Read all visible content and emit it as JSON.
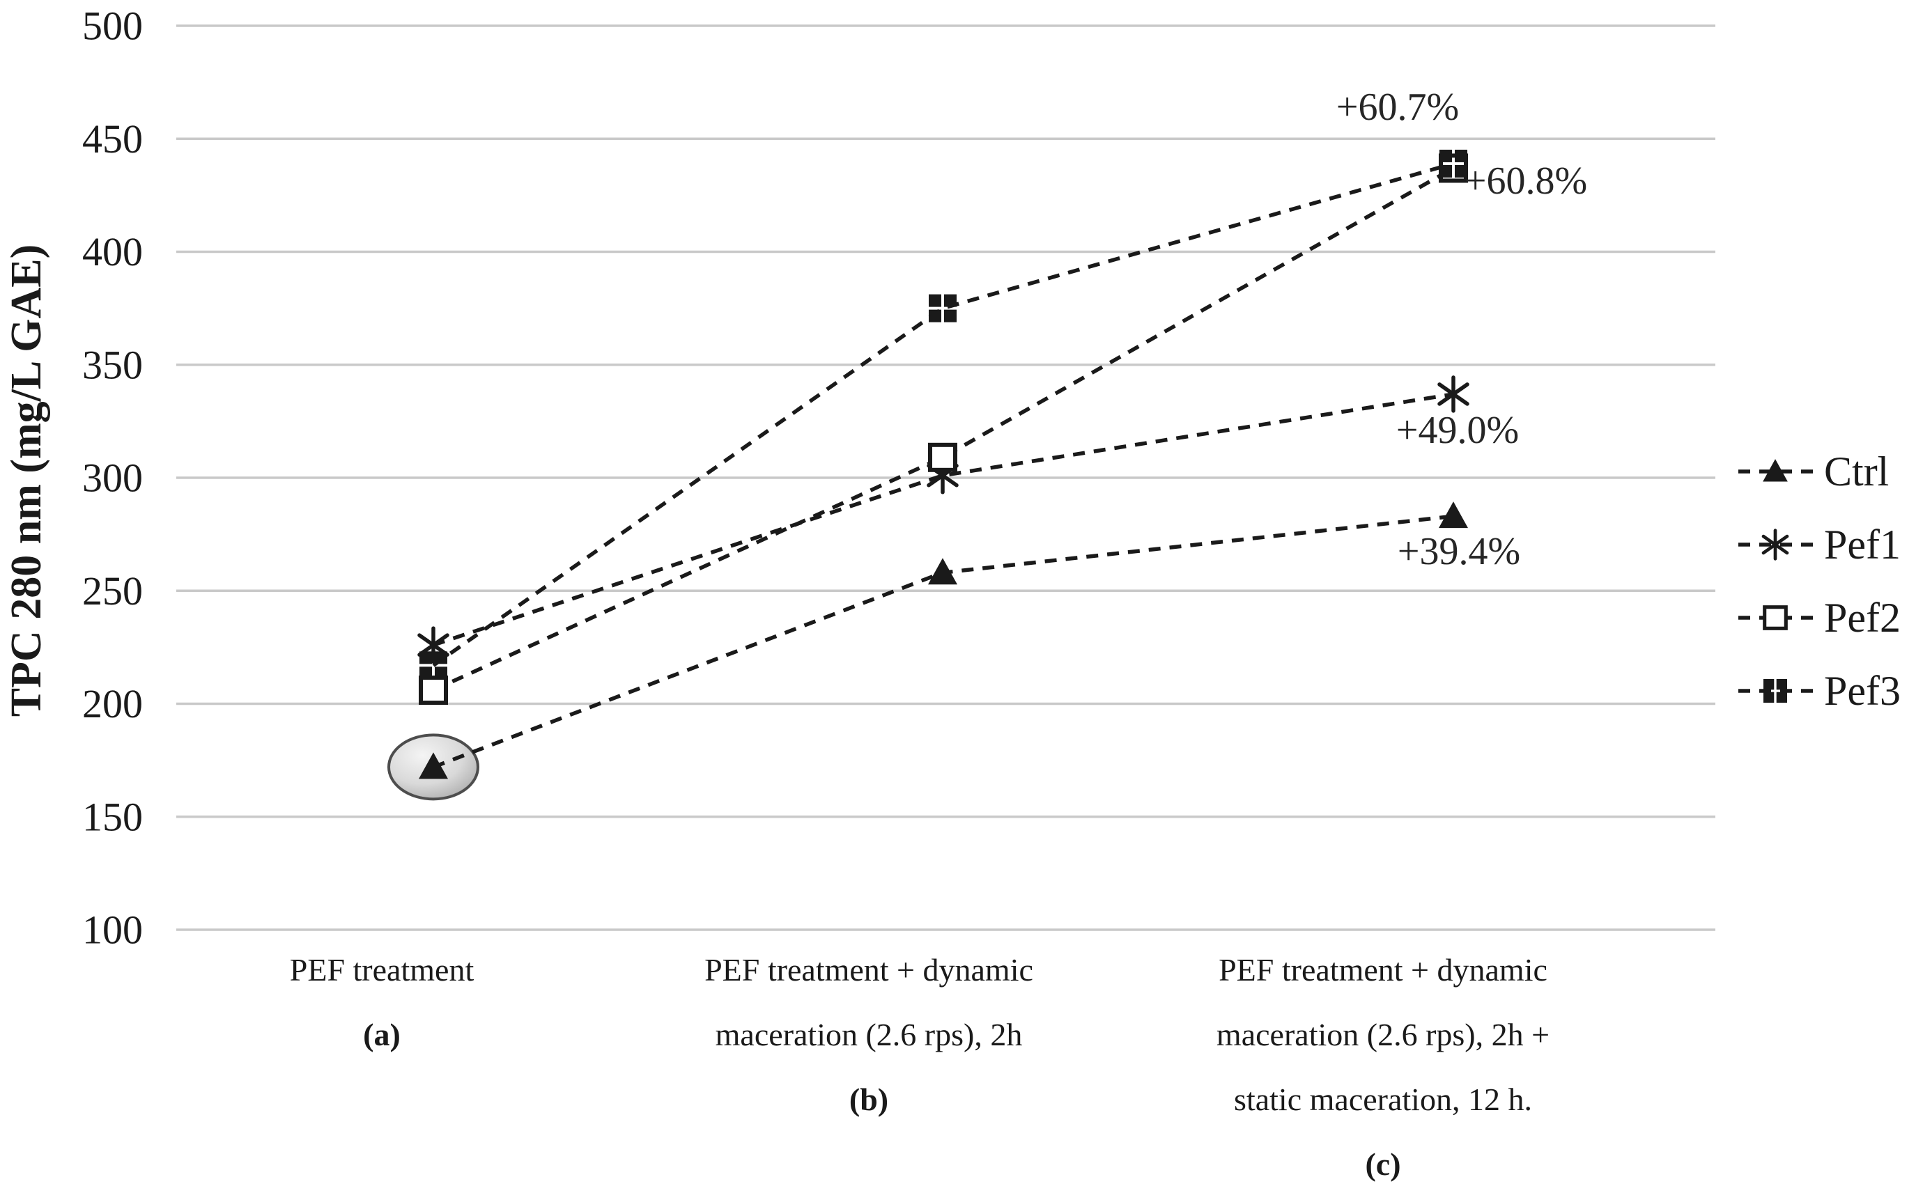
{
  "figure": {
    "kind": "scientific-line-chart",
    "background": "#ffffff"
  },
  "y_axis": {
    "title": "TPC 280 nm (mg/L GAE)",
    "ticks": [
      500,
      450,
      400,
      350,
      300,
      250,
      200,
      150,
      100
    ]
  },
  "x_axis": {
    "categories": [
      {
        "lines": [
          "PEF treatment"
        ],
        "tag": "(a)"
      },
      {
        "lines": [
          "PEF treatment + dynamic",
          "maceration (2.6 rps), 2h"
        ],
        "tag": "(b)"
      },
      {
        "lines": [
          "PEF treatment + dynamic",
          "maceration (2.6 rps), 2h +",
          "static maceration, 12 h."
        ],
        "tag": "(c)"
      }
    ]
  },
  "legend": {
    "items": [
      {
        "label": "Ctrl",
        "marker": "triangle"
      },
      {
        "label": "Pef1",
        "marker": "asterisk"
      },
      {
        "label": "Pef2",
        "marker": "square-open"
      },
      {
        "label": "Pef3",
        "marker": "squares-cluster"
      }
    ]
  },
  "chart_data": {
    "type": "line",
    "title": "",
    "xlabel": "",
    "ylabel": "TPC 280 nm (mg/L GAE)",
    "ylim": [
      100,
      500
    ],
    "ytick_step": 50,
    "grid": true,
    "legend_position": "right-middle",
    "line_style": "dashed",
    "line_color": "#1a1a1a",
    "categories": [
      "PEF treatment (a)",
      "PEF treatment + dynamic maceration (2.6 rps), 2h (b)",
      "PEF treatment + dynamic maceration (2.6 rps), 2h + static maceration, 12 h. (c)"
    ],
    "series": [
      {
        "name": "Ctrl",
        "marker": "triangle",
        "values": [
          172,
          258,
          283
        ]
      },
      {
        "name": "Pef1",
        "marker": "asterisk",
        "values": [
          226,
          301,
          337
        ]
      },
      {
        "name": "Pef2",
        "marker": "square-open",
        "values": [
          206,
          309,
          437
        ]
      },
      {
        "name": "Pef3",
        "marker": "squares-cluster",
        "values": [
          217,
          375,
          439
        ]
      }
    ],
    "annotations": [
      {
        "text": "+60.7%",
        "series": "Pef3",
        "px": [
          2006,
          172
        ]
      },
      {
        "text": "+60.8%",
        "series": "Pef2",
        "px": [
          2190,
          278
        ]
      },
      {
        "text": "+49.0%",
        "series": "Pef1",
        "px": [
          2092,
          636
        ]
      },
      {
        "text": "+39.4%",
        "series": "Ctrl",
        "px": [
          2094,
          810
        ]
      }
    ],
    "highlight": {
      "series": "Ctrl",
      "point_index": 0,
      "shape": "ellipse",
      "fill_light": "#f2f2f2",
      "fill_dark": "#aeaeae",
      "stroke": "#4d4d4d"
    }
  },
  "colors": {
    "text": "#1a1a1a",
    "grid": "#c9c9c9",
    "series": "#1a1a1a"
  }
}
